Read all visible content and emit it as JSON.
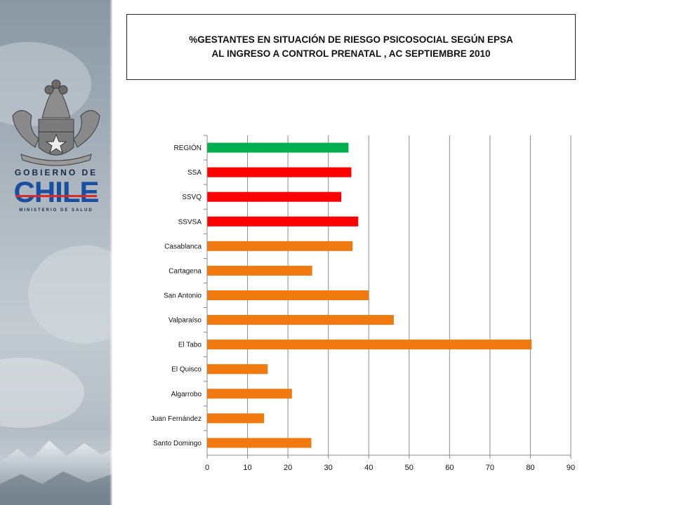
{
  "title": {
    "line1": "%GESTANTES  EN SITUACIÓN DE RIESGO PSICOSOCIAL SEGÚN EPSA",
    "line2": "AL INGRESO A CONTROL PRENATAL , AC SEPTIEMBRE 2010"
  },
  "logo": {
    "line1": "GOBIERNO DE",
    "line2": "CHILE",
    "line3": "MINISTERIO DE SALUD"
  },
  "colors": {
    "green": "#00b050",
    "red": "#ff0000",
    "orange": "#f07a10",
    "chile_blue": "#1a4fa0",
    "chile_red": "#d72b2b"
  },
  "chart_data": {
    "type": "bar",
    "orientation": "horizontal",
    "title": "",
    "xlabel": "",
    "ylabel": "",
    "xlim": [
      0,
      90
    ],
    "ticks": [
      0,
      10,
      20,
      30,
      40,
      50,
      60,
      70,
      80,
      90
    ],
    "grid": "vertical",
    "legend": "none",
    "categories": [
      "REGIÓN",
      "SSA",
      "SSVQ",
      "SSVSA",
      "Casablanca",
      "Cartagena",
      "San Antonio",
      "Valparaíso",
      "El Tabo",
      "El Quisco",
      "Algarrobo",
      "Juan Fernández",
      "Santo Domingo"
    ],
    "values": [
      35,
      35.7,
      33.2,
      37.4,
      36,
      26,
      40,
      46.2,
      80.3,
      15,
      21,
      14.1,
      25.8
    ],
    "bar_colors": [
      "green",
      "red",
      "red",
      "red",
      "orange",
      "orange",
      "orange",
      "orange",
      "orange",
      "orange",
      "orange",
      "orange",
      "orange"
    ]
  }
}
